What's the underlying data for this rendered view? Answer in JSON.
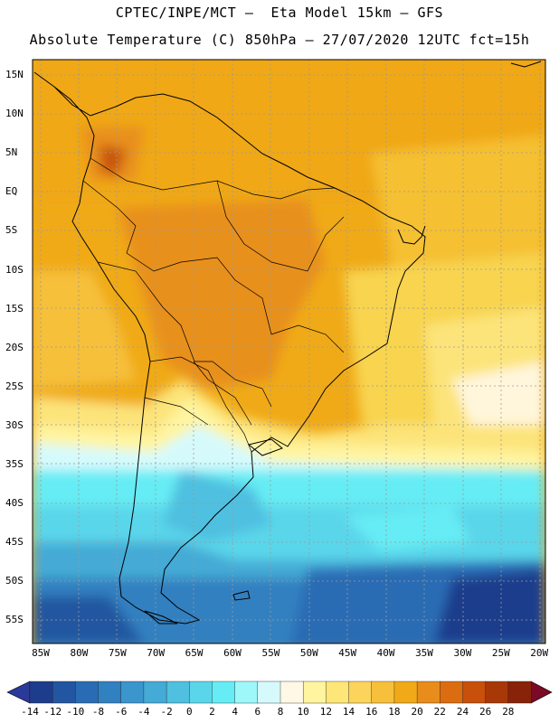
{
  "header": {
    "line1": "CPTEC/INPE/MCT –  Eta Model 15km – GFS",
    "line2": "Absolute Temperature (C) 850hPa – 27/07/2020 12UTC fct=15h"
  },
  "map": {
    "lat_labels": [
      "15N",
      "10N",
      "5N",
      "EQ",
      "5S",
      "10S",
      "15S",
      "20S",
      "25S",
      "30S",
      "35S",
      "40S",
      "45S",
      "50S",
      "55S"
    ],
    "lon_labels": [
      "85W",
      "80W",
      "75W",
      "70W",
      "65W",
      "60W",
      "55W",
      "50W",
      "45W",
      "40W",
      "35W",
      "30W",
      "25W",
      "20W"
    ],
    "grid": "dotted"
  },
  "colorbar": {
    "labels": [
      "-14",
      "-12",
      "-10",
      "-8",
      "-6",
      "-4",
      "-2",
      "0",
      "2",
      "4",
      "6",
      "8",
      "10",
      "12",
      "14",
      "16",
      "18",
      "20",
      "22",
      "24",
      "26",
      "28"
    ],
    "colors": [
      "#1e3c8c",
      "#2356a0",
      "#2a6cb4",
      "#3180c0",
      "#3a96cc",
      "#44aad6",
      "#4fc0e0",
      "#5ad6ea",
      "#66ecf4",
      "#9ef8fa",
      "#d6fafc",
      "#fff8e6",
      "#fff4a0",
      "#ffe678",
      "#fcd45c",
      "#f6c03a",
      "#f0aa18",
      "#e88c1c",
      "#dc6c10",
      "#c8500a",
      "#a83808",
      "#882208"
    ]
  }
}
